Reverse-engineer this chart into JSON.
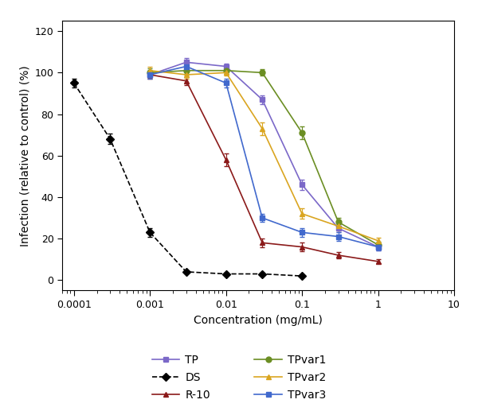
{
  "series": {
    "TP": {
      "x": [
        0.001,
        0.003,
        0.01,
        0.03,
        0.1,
        0.3,
        1.0
      ],
      "y": [
        99,
        105,
        103,
        87,
        46,
        25,
        16
      ],
      "yerr": [
        1.5,
        2.0,
        1.5,
        2.0,
        2.5,
        2.0,
        1.5
      ],
      "color": "#7B68C8",
      "marker": "s",
      "linestyle": "-"
    },
    "DS": {
      "x": [
        0.0001,
        0.0003,
        0.001,
        0.003,
        0.01,
        0.03,
        0.1
      ],
      "y": [
        95,
        68,
        23,
        4,
        3,
        3,
        2
      ],
      "yerr": [
        2.0,
        2.5,
        2.0,
        0.5,
        0.5,
        0.5,
        0.5
      ],
      "color": "#000000",
      "marker": "D",
      "linestyle": "--"
    },
    "R-10": {
      "x": [
        0.001,
        0.003,
        0.01,
        0.03,
        0.1,
        0.3,
        1.0
      ],
      "y": [
        99,
        96,
        58,
        18,
        16,
        12,
        9
      ],
      "yerr": [
        2.0,
        2.0,
        3.0,
        2.0,
        2.0,
        1.5,
        1.0
      ],
      "color": "#8B1A1A",
      "marker": "^",
      "linestyle": "-"
    },
    "TPvar1": {
      "x": [
        0.001,
        0.003,
        0.01,
        0.03,
        0.1,
        0.3,
        1.0
      ],
      "y": [
        100,
        101,
        101,
        100,
        71,
        28,
        17
      ],
      "yerr": [
        2.0,
        2.0,
        1.5,
        1.5,
        3.0,
        2.0,
        1.5
      ],
      "color": "#6B8E23",
      "marker": "o",
      "linestyle": "-"
    },
    "TPvar2": {
      "x": [
        0.001,
        0.003,
        0.01,
        0.03,
        0.1,
        0.3,
        1.0
      ],
      "y": [
        101,
        99,
        100,
        73,
        32,
        26,
        19
      ],
      "yerr": [
        2.0,
        2.0,
        1.5,
        3.0,
        2.5,
        2.0,
        1.5
      ],
      "color": "#DAA520",
      "marker": "^",
      "linestyle": "-"
    },
    "TPvar3": {
      "x": [
        0.001,
        0.003,
        0.01,
        0.03,
        0.1,
        0.3,
        1.0
      ],
      "y": [
        99,
        103,
        95,
        30,
        23,
        21,
        16
      ],
      "yerr": [
        2.0,
        2.0,
        2.0,
        2.0,
        2.0,
        2.0,
        1.5
      ],
      "color": "#4169CD",
      "marker": "s",
      "linestyle": "-"
    }
  },
  "xlabel": "Concentration (mg/mL)",
  "ylabel": "Infection (relative to control) (%)",
  "xlim": [
    7e-05,
    10
  ],
  "ylim": [
    -5,
    125
  ],
  "yticks": [
    0,
    20,
    40,
    60,
    80,
    100,
    120
  ],
  "xtick_vals": [
    0.0001,
    0.001,
    0.01,
    0.1,
    1,
    10
  ],
  "xtick_labels": [
    "0.0001",
    "0.001",
    "0.01",
    "0.1",
    "1",
    "10"
  ],
  "background_color": "#ffffff",
  "legend_order": [
    "TP",
    "DS",
    "R-10",
    "TPvar1",
    "TPvar2",
    "TPvar3"
  ]
}
